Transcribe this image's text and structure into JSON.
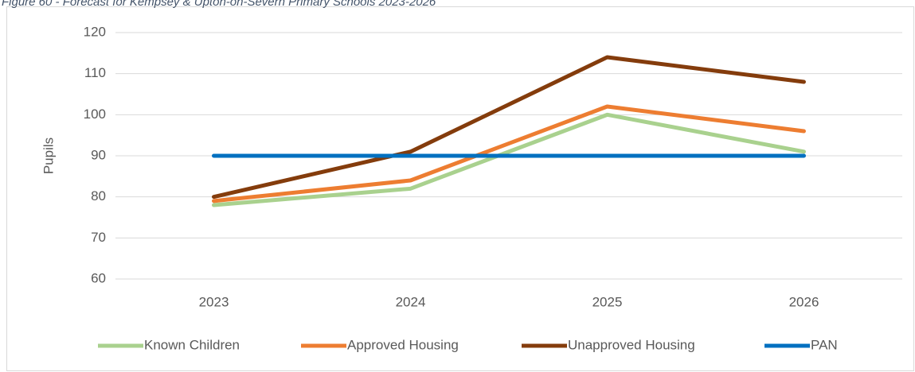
{
  "chart_data": {
    "type": "line",
    "title": "Figure 60 - Forecast for Kempsey & Upton-on-Severn Primary Schools 2023-2026",
    "y_label": "Pupils",
    "categories": [
      "2023",
      "2024",
      "2025",
      "2026"
    ],
    "series": [
      {
        "name": "Known Children",
        "color": "#a9d18e",
        "values": [
          78,
          82,
          100,
          91
        ]
      },
      {
        "name": "Approved Housing",
        "color": "#ed7d31",
        "values": [
          79,
          84,
          102,
          96
        ]
      },
      {
        "name": "Unapproved Housing",
        "color": "#843c0c",
        "values": [
          80,
          91,
          114,
          108
        ]
      },
      {
        "name": "PAN",
        "color": "#0070c0",
        "values": [
          90,
          90,
          90,
          90
        ]
      }
    ],
    "ylim": [
      60,
      120
    ],
    "yticks": [
      60,
      70,
      80,
      90,
      100,
      110,
      120
    ],
    "grid": true,
    "legend": "bottom"
  }
}
